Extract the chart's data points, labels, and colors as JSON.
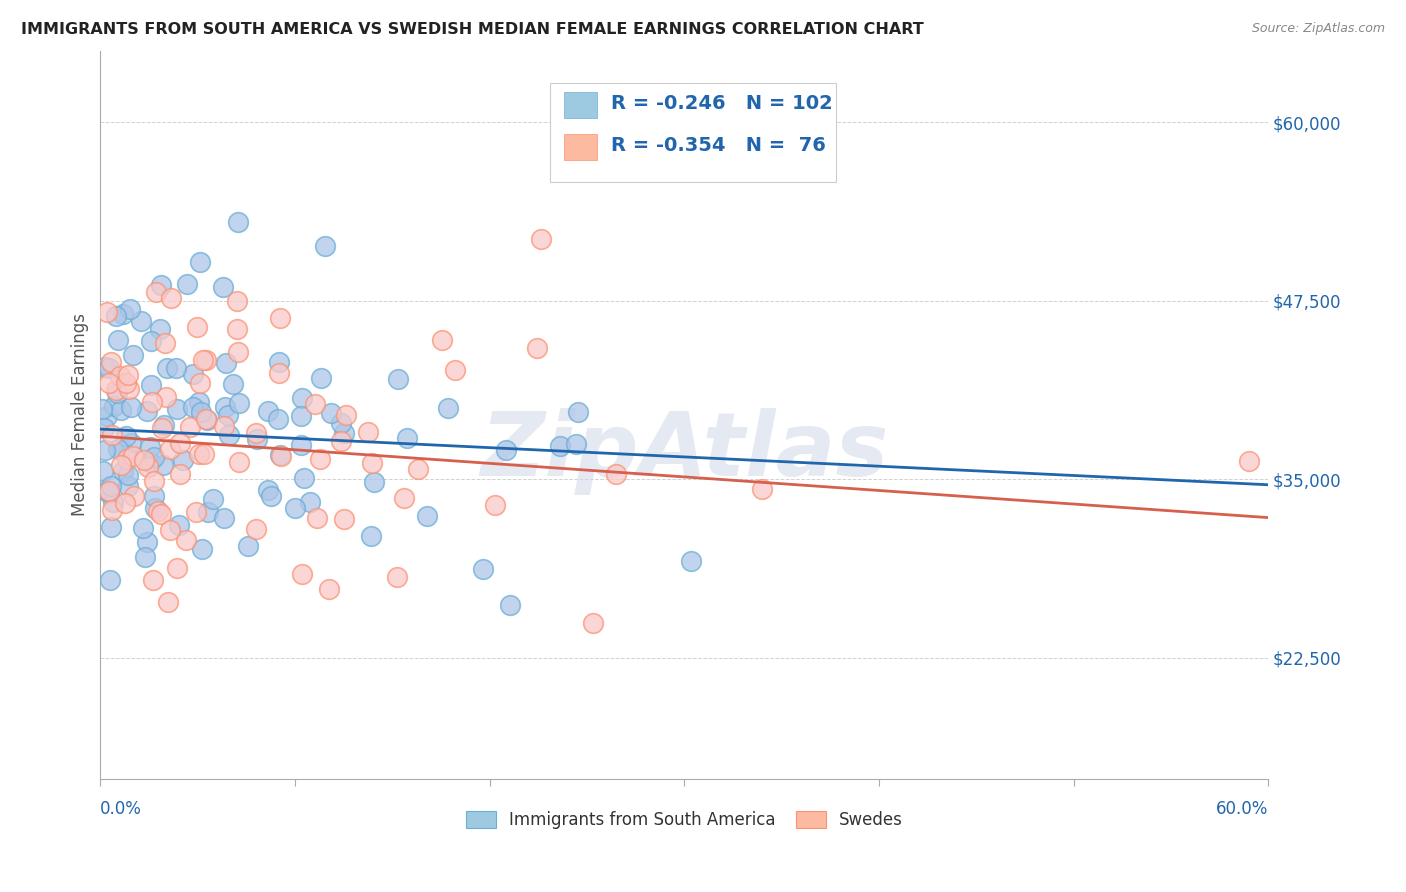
{
  "title": "IMMIGRANTS FROM SOUTH AMERICA VS SWEDISH MEDIAN FEMALE EARNINGS CORRELATION CHART",
  "source": "Source: ZipAtlas.com",
  "ylabel": "Median Female Earnings",
  "ytick_vals": [
    22500,
    35000,
    47500,
    60000
  ],
  "ytick_labels": [
    "$22,500",
    "$35,000",
    "$47,500",
    "$60,000"
  ],
  "xlim": [
    0.0,
    0.6
  ],
  "ylim": [
    14000,
    65000
  ],
  "legend_blue_R": "-0.246",
  "legend_blue_N": "102",
  "legend_pink_R": "-0.354",
  "legend_pink_N": " 76",
  "legend_label_blue": "Immigrants from South America",
  "legend_label_pink": "Swedes",
  "watermark": "ZipAtlas",
  "blue_face": "#aec6e8",
  "blue_edge": "#6baed6",
  "pink_face": "#f9c9c9",
  "pink_edge": "#fc9272",
  "blue_line_color": "#2166ac",
  "pink_line_color": "#d6604d",
  "legend_sq_blue": "#9ecae1",
  "legend_sq_pink": "#fcbba1",
  "text_blue": "#2166ac",
  "text_dark": "#333333",
  "grid_color": "#cccccc",
  "blue_intercept": 38500,
  "blue_slope": -6500,
  "pink_intercept": 38000,
  "pink_slope": -9500
}
